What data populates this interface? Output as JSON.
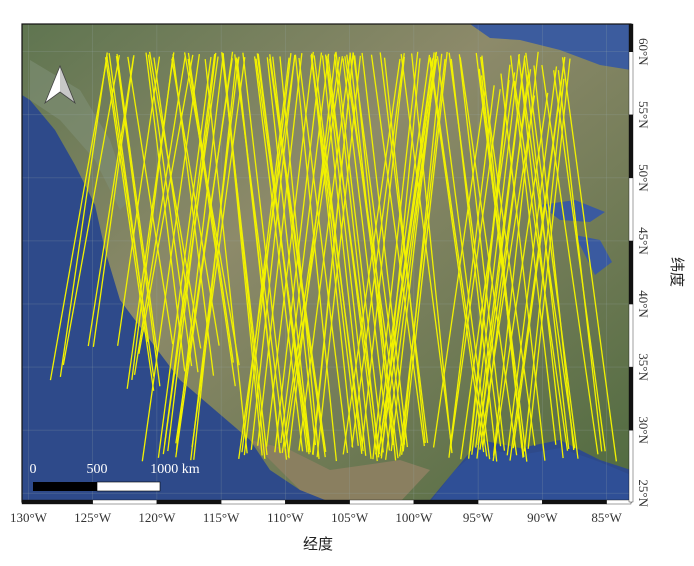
{
  "map": {
    "x_axis_label": "经度",
    "y_axis_label": "纬度",
    "lon_ticks": [
      "130°W",
      "125°W",
      "120°W",
      "115°W",
      "110°W",
      "105°W",
      "100°W",
      "95°W",
      "90°W",
      "85°W"
    ],
    "lon_values": [
      -130,
      -125,
      -120,
      -115,
      -110,
      -105,
      -100,
      -95,
      -90,
      -85
    ],
    "lat_ticks": [
      "25°N",
      "30°N",
      "35°N",
      "40°N",
      "45°N",
      "50°N",
      "55°N",
      "60°N"
    ],
    "lat_values": [
      25,
      30,
      35,
      40,
      45,
      50,
      55,
      60
    ],
    "extent": {
      "lon": [
        -130.5,
        -83.1
      ],
      "lat": [
        24.3,
        62.2
      ]
    },
    "basemap": "satellite imagery",
    "track_color": "#f2f200",
    "track_extent": {
      "lon": [
        -125,
        -86.5
      ],
      "lat": [
        27.5,
        60
      ]
    },
    "scale_bar": {
      "labels": [
        "0",
        "500",
        "1000 km"
      ]
    },
    "north_arrow": "north-arrow-icon"
  }
}
